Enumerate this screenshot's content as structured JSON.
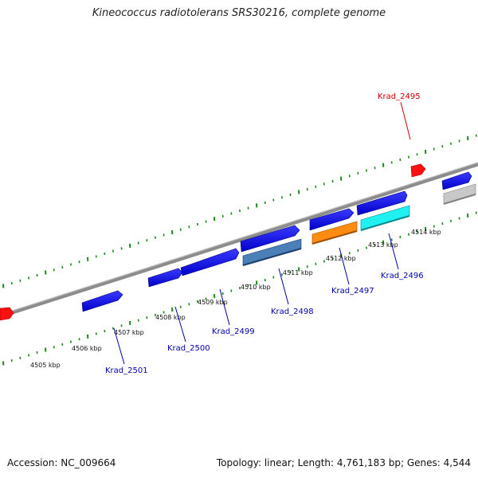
{
  "title": "Kineococcus radiotolerans SRS30216, complete genome",
  "footer": {
    "accession": "Accession: NC_009664",
    "summary": "Topology: linear; Length: 4,761,183 bp; Genes: 4,544"
  },
  "kbp_labels": [
    "4505 kbp",
    "4506 kbp",
    "4507 kbp",
    "4508 kbp",
    "4509 kbp",
    "4510 kbp",
    "4511 kbp",
    "4512 kbp",
    "4513 kbp",
    "4514 kbp"
  ],
  "genes": [
    {
      "name": "Krad_2495",
      "color": "#cc0000"
    },
    {
      "name": "Krad_2496",
      "color": "#0000aa"
    },
    {
      "name": "Krad_2497",
      "color": "#0000aa"
    },
    {
      "name": "Krad_2498",
      "color": "#0000aa"
    },
    {
      "name": "Krad_2499",
      "color": "#0000aa"
    },
    {
      "name": "Krad_2500",
      "color": "#0000aa"
    },
    {
      "name": "Krad_2501",
      "color": "#0000aa"
    }
  ],
  "colors": {
    "backbone": "#8a8a8a",
    "tick": "#1a8a1a",
    "cds_blue": "#1010e0",
    "rna_red": "#ff1010",
    "steelblue": "#4a7fb8",
    "orange": "#ff8c10",
    "cyan": "#20f0f0",
    "grey": "#c8c8c8"
  }
}
